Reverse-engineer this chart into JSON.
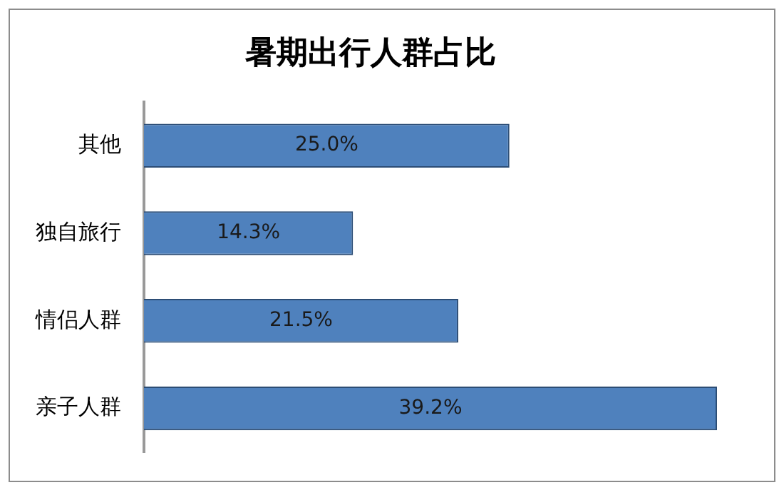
{
  "chart_data": {
    "type": "bar",
    "orientation": "horizontal",
    "title": "暑期出行人群占比",
    "categories": [
      "其他",
      "独自旅行",
      "情侣人群",
      "亲子人群"
    ],
    "values": [
      25.0,
      14.3,
      21.5,
      39.2
    ],
    "value_labels": [
      "25.0%",
      "14.3%",
      "21.5%",
      "39.2%"
    ],
    "color": "#4f81bd"
  }
}
